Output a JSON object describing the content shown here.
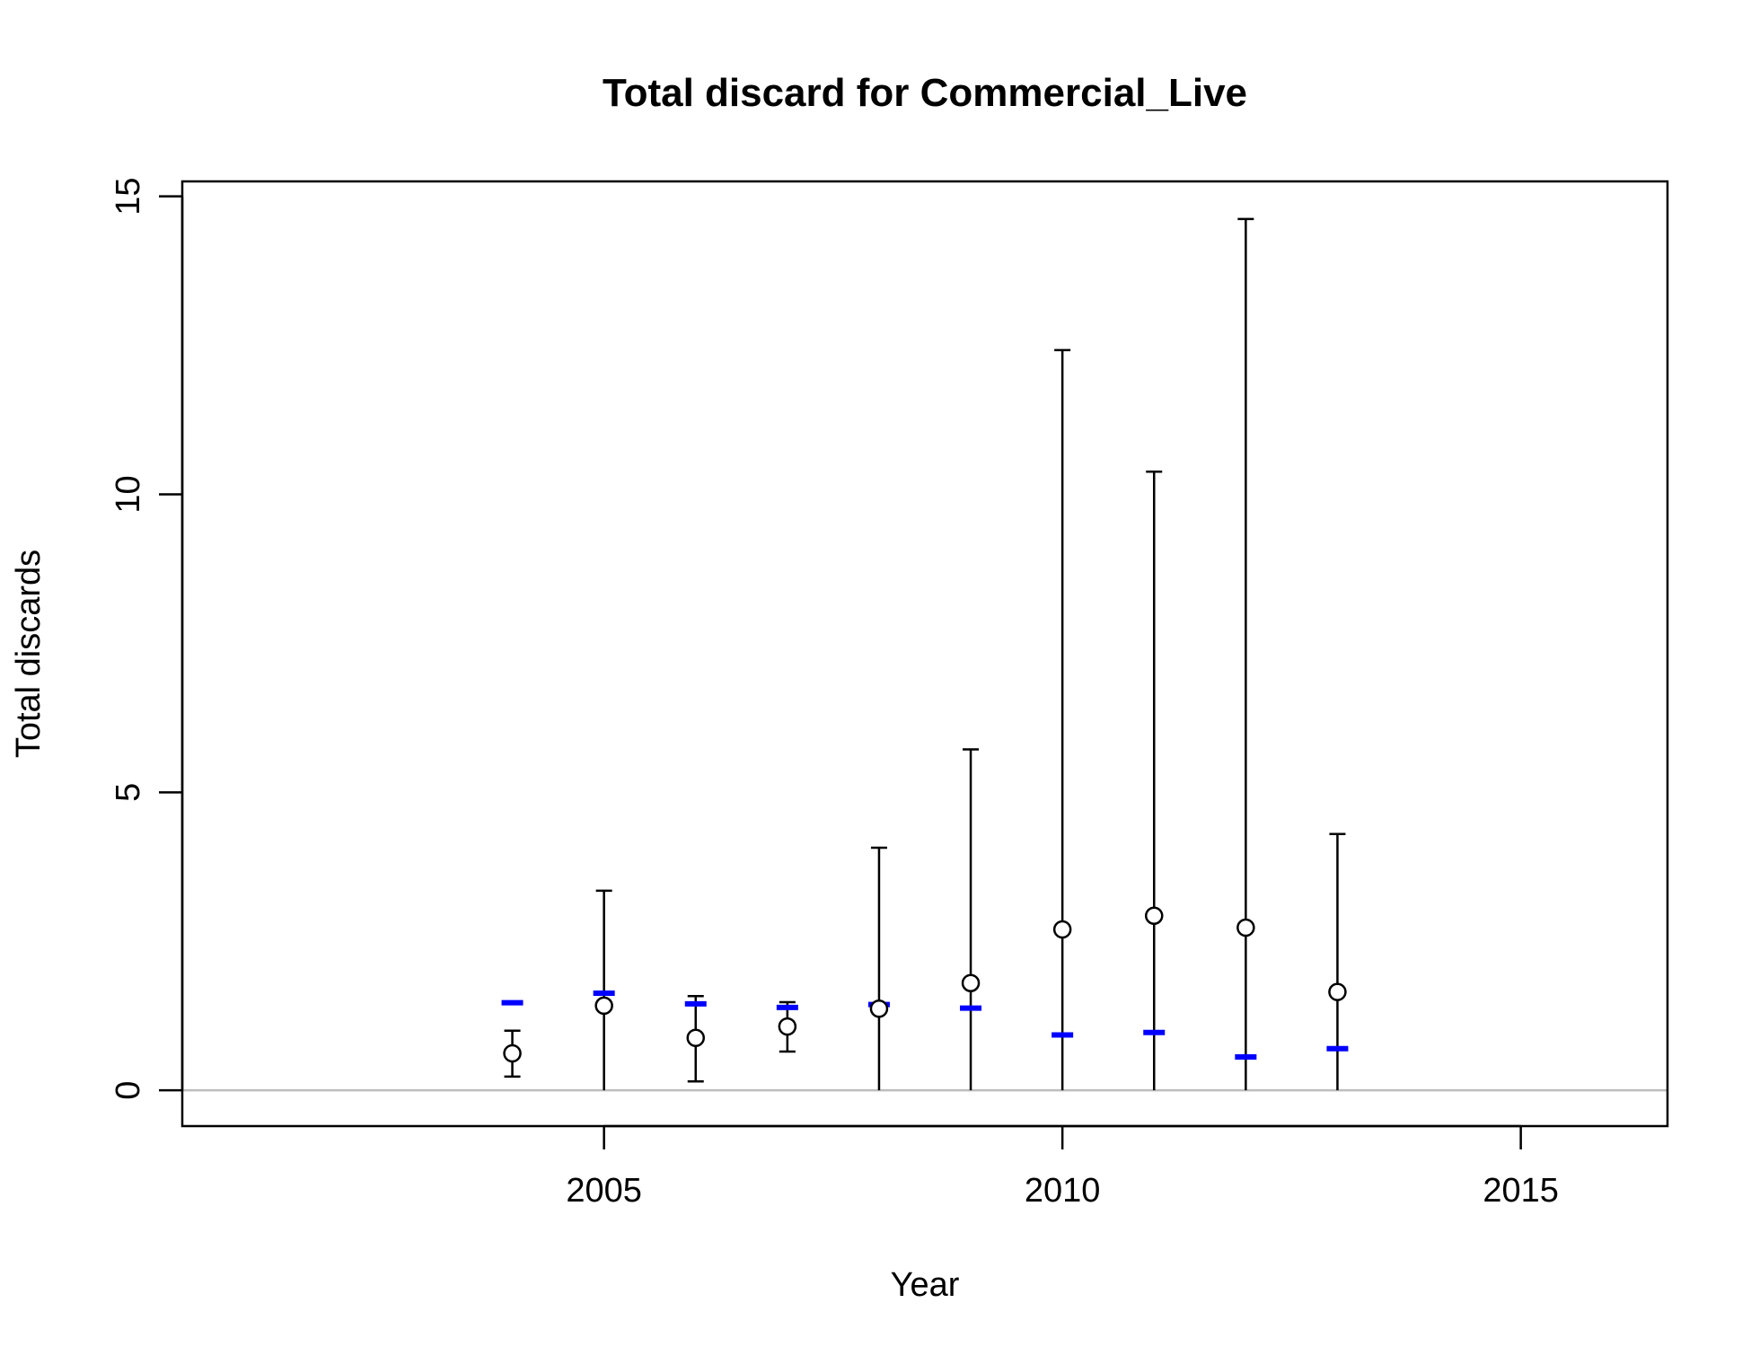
{
  "chart_data": {
    "type": "scatter",
    "title": "Total discard for Commercial_Live",
    "xlabel": "Year",
    "ylabel": "Total discards",
    "xlim": [
      2000.4,
      2016.6
    ],
    "ylim": [
      -0.6,
      15.25
    ],
    "x_ticks": [
      "2005",
      "2010",
      "2015"
    ],
    "y_ticks": [
      "0",
      "5",
      "10",
      "15"
    ],
    "x_tick_values": [
      2005,
      2010,
      2015
    ],
    "y_tick_values": [
      0,
      5,
      10,
      15
    ],
    "grid": false,
    "legend": "none",
    "reference_line": {
      "y": 0,
      "color": "#bebebe"
    },
    "colors": {
      "observed": "#000000",
      "expected": "#0000ff",
      "errorbar": "#000000"
    },
    "series": [
      {
        "kind": "observed_with_interval",
        "x": [
          2004,
          2005,
          2006,
          2007,
          2008,
          2009,
          2010,
          2011,
          2012,
          2013
        ],
        "values": [
          0.62,
          1.42,
          0.88,
          1.07,
          1.37,
          1.8,
          2.7,
          2.93,
          2.73,
          1.65
        ],
        "lower": [
          0.23,
          0.0,
          0.15,
          0.65,
          0.0,
          0.0,
          0.0,
          0.0,
          0.0,
          0.0
        ],
        "upper": [
          1.0,
          3.35,
          1.58,
          1.48,
          4.07,
          5.72,
          12.42,
          10.38,
          14.62,
          4.3
        ]
      },
      {
        "kind": "expected",
        "x": [
          2004,
          2005,
          2006,
          2007,
          2008,
          2009,
          2010,
          2011,
          2012,
          2013
        ],
        "values": [
          1.47,
          1.63,
          1.45,
          1.39,
          1.44,
          1.38,
          0.93,
          0.97,
          0.56,
          0.7
        ]
      }
    ]
  }
}
